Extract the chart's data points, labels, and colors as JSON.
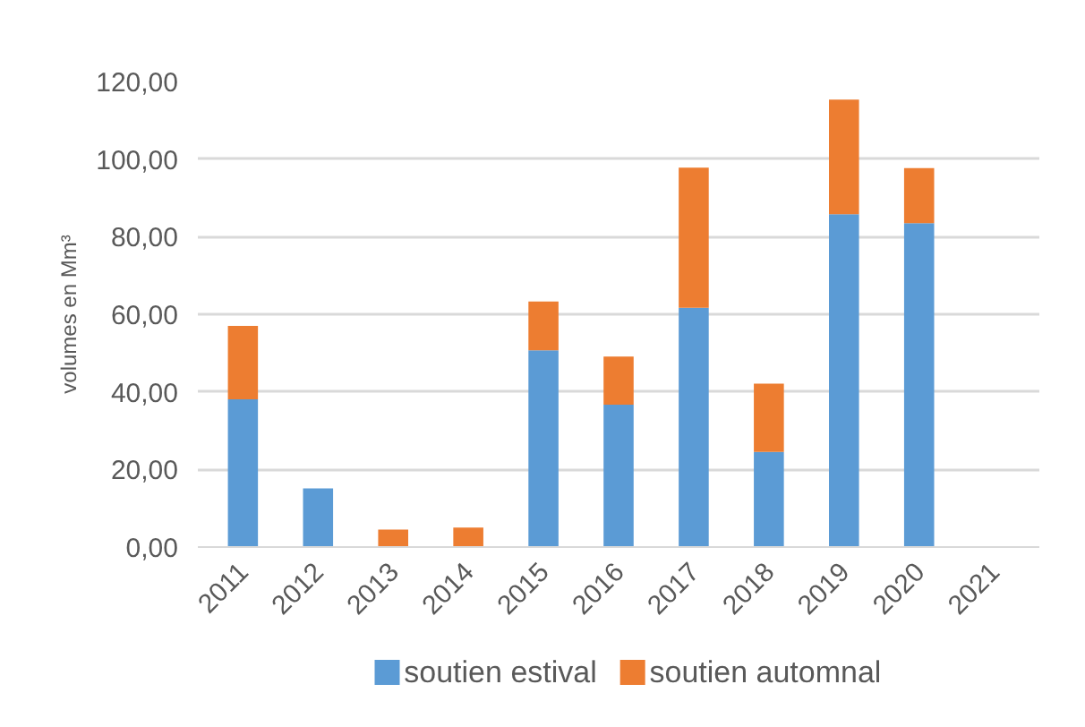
{
  "chart_data": {
    "type": "bar",
    "stacked": true,
    "ylabel": "volumes en Mm³",
    "categories": [
      "2011",
      "2012",
      "2013",
      "2014",
      "2015",
      "2016",
      "2017",
      "2018",
      "2019",
      "2020",
      "2021"
    ],
    "series": [
      {
        "name": "soutien estival",
        "color": "#5b9bd5",
        "values": [
          38.1,
          15.1,
          null,
          null,
          50.7,
          36.7,
          61.7,
          24.5,
          85.8,
          83.5,
          null
        ]
      },
      {
        "name": "soutien automnal",
        "color": "#ed7d31",
        "values": [
          18.9,
          null,
          4.5,
          5.0,
          12.6,
          12.4,
          36.1,
          17.6,
          29.5,
          14.2,
          null
        ]
      }
    ],
    "ylim": [
      0,
      120
    ],
    "yticks": [
      {
        "value": 0,
        "label": "0,00"
      },
      {
        "value": 20,
        "label": "20,00"
      },
      {
        "value": 40,
        "label": "40,00"
      },
      {
        "value": 60,
        "label": "60,00"
      },
      {
        "value": 80,
        "label": "80,00"
      },
      {
        "value": 100,
        "label": "100,00"
      },
      {
        "value": 120,
        "label": "120,00"
      }
    ],
    "grid": "y",
    "legend": "bottom"
  }
}
